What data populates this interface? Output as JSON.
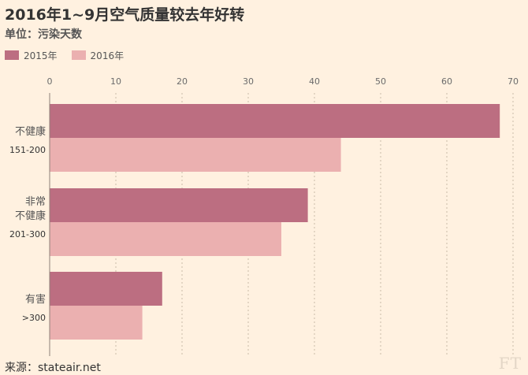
{
  "chart_data": {
    "type": "bar",
    "orientation": "horizontal",
    "title": "2016年1~9月空气质量较去年好转",
    "subtitle": "单位：污染天数",
    "categories": [
      {
        "label_lines": [
          "不健康"
        ],
        "range": "151-200"
      },
      {
        "label_lines": [
          "非常",
          "不健康"
        ],
        "range": "201-300"
      },
      {
        "label_lines": [
          "有害"
        ],
        "range": ">300"
      }
    ],
    "series": [
      {
        "name": "2015年",
        "values": [
          68,
          39,
          17
        ],
        "color": "#bc6e81"
      },
      {
        "name": "2016年",
        "values": [
          44,
          35,
          14
        ],
        "color": "#ebb0b0"
      }
    ],
    "xlim": [
      0,
      70
    ],
    "xticks": [
      0,
      10,
      20,
      30,
      40,
      50,
      60,
      70
    ],
    "grid": true,
    "legend_position": "top-left"
  },
  "source": "来源：stateair.net",
  "logo": "FT"
}
